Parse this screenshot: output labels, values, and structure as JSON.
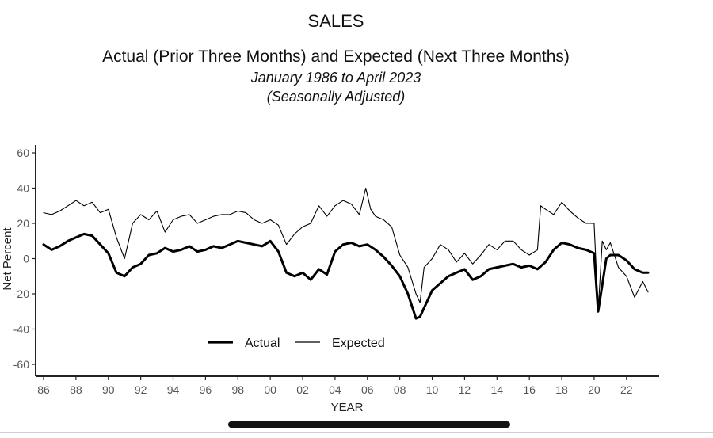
{
  "header": {
    "title": "SALES",
    "subtitle": "Actual (Prior Three Months) and Expected (Next Three Months)",
    "period": "January 1986 to April 2023",
    "note": "(Seasonally Adjusted)"
  },
  "chart_data": {
    "type": "line",
    "title": "SALES",
    "subtitle": "Actual (Prior Three Months) and Expected (Next Three Months)",
    "xlabel": "YEAR",
    "ylabel": "Net Percent",
    "xlim": [
      1986,
      2023.33
    ],
    "ylim": [
      -65,
      65
    ],
    "x_ticks": [
      1986,
      1988,
      1990,
      1992,
      1994,
      1996,
      1998,
      2000,
      2002,
      2004,
      2006,
      2008,
      2010,
      2012,
      2014,
      2016,
      2018,
      2020,
      2022
    ],
    "x_tick_labels": [
      "86",
      "88",
      "90",
      "92",
      "94",
      "96",
      "98",
      "00",
      "02",
      "04",
      "06",
      "08",
      "10",
      "12",
      "14",
      "16",
      "18",
      "20",
      "22"
    ],
    "y_ticks": [
      -60,
      -40,
      -20,
      0,
      20,
      40,
      60
    ],
    "y_tick_labels": [
      "-60",
      "-40",
      "-20",
      "0",
      "20",
      "40",
      "60"
    ],
    "grid": false,
    "legend": {
      "placement": "bottom-left",
      "entries": [
        "Actual",
        "Expected"
      ]
    },
    "series": [
      {
        "name": "Actual",
        "style": "thick",
        "color": "#000000",
        "x": [
          1986.0,
          1986.5,
          1987.0,
          1987.5,
          1988.0,
          1988.5,
          1989.0,
          1989.5,
          1990.0,
          1990.5,
          1991.0,
          1991.5,
          1992.0,
          1992.5,
          1993.0,
          1993.5,
          1994.0,
          1994.5,
          1995.0,
          1995.5,
          1996.0,
          1996.5,
          1997.0,
          1997.5,
          1998.0,
          1998.5,
          1999.0,
          1999.5,
          2000.0,
          2000.5,
          2001.0,
          2001.5,
          2002.0,
          2002.5,
          2003.0,
          2003.5,
          2004.0,
          2004.5,
          2005.0,
          2005.5,
          2006.0,
          2006.5,
          2007.0,
          2007.5,
          2008.0,
          2008.5,
          2009.0,
          2009.25,
          2009.5,
          2010.0,
          2010.5,
          2011.0,
          2011.5,
          2012.0,
          2012.5,
          2013.0,
          2013.5,
          2014.0,
          2014.5,
          2015.0,
          2015.5,
          2016.0,
          2016.5,
          2017.0,
          2017.5,
          2018.0,
          2018.5,
          2019.0,
          2019.5,
          2020.0,
          2020.25,
          2020.5,
          2020.75,
          2021.0,
          2021.5,
          2022.0,
          2022.5,
          2023.0,
          2023.33
        ],
        "values": [
          8,
          5,
          7,
          10,
          12,
          14,
          13,
          8,
          3,
          -8,
          -10,
          -5,
          -3,
          2,
          3,
          6,
          4,
          5,
          7,
          4,
          5,
          7,
          6,
          8,
          10,
          9,
          8,
          7,
          10,
          4,
          -8,
          -10,
          -8,
          -12,
          -6,
          -9,
          4,
          8,
          9,
          7,
          8,
          5,
          1,
          -4,
          -10,
          -20,
          -34,
          -33,
          -28,
          -18,
          -14,
          -10,
          -8,
          -6,
          -12,
          -10,
          -6,
          -5,
          -4,
          -3,
          -5,
          -4,
          -6,
          -2,
          5,
          9,
          8,
          6,
          5,
          3,
          -30,
          -15,
          0,
          2,
          2,
          -1,
          -6,
          -8,
          -8
        ]
      },
      {
        "name": "Expected",
        "style": "thin",
        "color": "#000000",
        "x": [
          1986.0,
          1986.5,
          1987.0,
          1987.5,
          1988.0,
          1988.5,
          1989.0,
          1989.5,
          1990.0,
          1990.5,
          1991.0,
          1991.5,
          1992.0,
          1992.5,
          1993.0,
          1993.5,
          1994.0,
          1994.5,
          1995.0,
          1995.5,
          1996.0,
          1996.5,
          1997.0,
          1997.5,
          1998.0,
          1998.5,
          1999.0,
          1999.5,
          2000.0,
          2000.5,
          2001.0,
          2001.5,
          2002.0,
          2002.5,
          2003.0,
          2003.5,
          2004.0,
          2004.5,
          2005.0,
          2005.5,
          2005.9,
          2006.2,
          2006.5,
          2007.0,
          2007.5,
          2008.0,
          2008.5,
          2009.0,
          2009.25,
          2009.5,
          2010.0,
          2010.5,
          2011.0,
          2011.5,
          2012.0,
          2012.5,
          2013.0,
          2013.5,
          2014.0,
          2014.5,
          2015.0,
          2015.5,
          2016.0,
          2016.5,
          2016.7,
          2017.0,
          2017.5,
          2018.0,
          2018.5,
          2019.0,
          2019.5,
          2020.0,
          2020.25,
          2020.5,
          2020.75,
          2021.0,
          2021.5,
          2022.0,
          2022.5,
          2023.0,
          2023.33
        ],
        "values": [
          26,
          25,
          27,
          30,
          33,
          30,
          32,
          26,
          28,
          12,
          0,
          20,
          25,
          22,
          27,
          15,
          22,
          24,
          25,
          20,
          22,
          24,
          25,
          25,
          27,
          26,
          22,
          20,
          22,
          19,
          8,
          14,
          18,
          20,
          30,
          24,
          30,
          33,
          31,
          25,
          40,
          28,
          24,
          22,
          18,
          2,
          -5,
          -20,
          -25,
          -5,
          0,
          8,
          5,
          -2,
          3,
          -3,
          2,
          8,
          5,
          10,
          10,
          5,
          2,
          5,
          30,
          28,
          25,
          32,
          27,
          23,
          20,
          20,
          -30,
          10,
          5,
          9,
          -5,
          -10,
          -22,
          -13,
          -19
        ]
      }
    ]
  }
}
